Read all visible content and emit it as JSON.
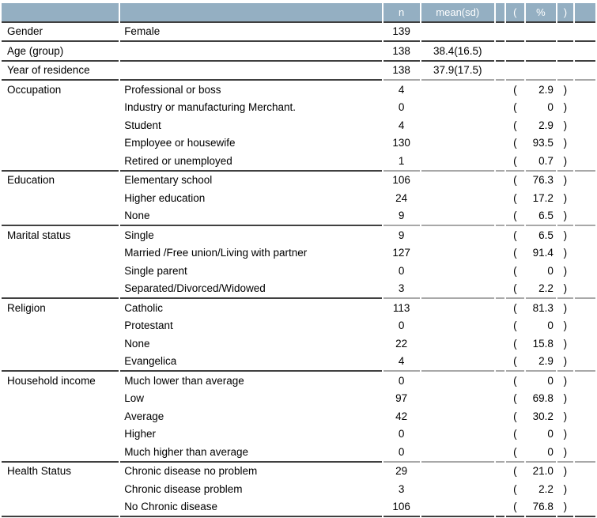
{
  "palette": {
    "header_bg": "#94AFC2",
    "header_text": "#FFFFFF",
    "border_dark": "#404040",
    "border_light": "#A8A8A8",
    "body_text": "#000000"
  },
  "table": {
    "header": {
      "n": "n",
      "mean_sd": "mean(sd)",
      "paren_open": "(",
      "percent": "%",
      "paren_close": ")"
    },
    "sections": [
      {
        "category": "Gender",
        "rows": [
          {
            "label": "Female",
            "n": "139"
          }
        ]
      },
      {
        "category": "Age (group)",
        "rows": [
          {
            "label": "",
            "n": "138",
            "mean_sd": "38.4(16.5)"
          }
        ]
      },
      {
        "category": "Year of residence",
        "rows": [
          {
            "label": "",
            "n": "138",
            "mean_sd": "37.9(17.5)"
          }
        ]
      },
      {
        "category": "Occupation",
        "rows": [
          {
            "label": "Professional or boss",
            "n": "4",
            "po": "(",
            "pct": "2.9",
            "pc": ")"
          },
          {
            "label": "Industry or manufacturing Merchant.",
            "n": "0",
            "po": "(",
            "pct": "0",
            "pc": ")"
          },
          {
            "label": "Student",
            "n": "4",
            "po": "(",
            "pct": "2.9",
            "pc": ")"
          },
          {
            "label": "Employee or housewife",
            "n": "130",
            "po": "(",
            "pct": "93.5",
            "pc": ")"
          },
          {
            "label": "Retired or unemployed",
            "n": "1",
            "po": "(",
            "pct": "0.7",
            "pc": ")"
          }
        ]
      },
      {
        "category": "Education",
        "rows": [
          {
            "label": "Elementary school",
            "n": "106",
            "po": "(",
            "pct": "76.3",
            "pc": ")"
          },
          {
            "label": "Higher education",
            "n": "24",
            "po": "(",
            "pct": "17.2",
            "pc": ")"
          },
          {
            "label": "None",
            "n": "9",
            "po": "(",
            "pct": "6.5",
            "pc": ")"
          }
        ]
      },
      {
        "category": "Marital status",
        "rows": [
          {
            "label": "Single",
            "n": "9",
            "po": "(",
            "pct": "6.5",
            "pc": ")"
          },
          {
            "label": "Married /Free union/Living with partner",
            "n": "127",
            "po": "(",
            "pct": "91.4",
            "pc": ")"
          },
          {
            "label": "Single parent",
            "n": "0",
            "po": "(",
            "pct": "0",
            "pc": ")"
          },
          {
            "label": "Separated/Divorced/Widowed",
            "n": "3",
            "po": "(",
            "pct": "2.2",
            "pc": ")"
          }
        ]
      },
      {
        "category": "Religion",
        "rows": [
          {
            "label": "Catholic",
            "n": "113",
            "po": "(",
            "pct": "81.3",
            "pc": ")"
          },
          {
            "label": "Protestant",
            "n": "0",
            "po": "(",
            "pct": "0",
            "pc": ")"
          },
          {
            "label": "None",
            "n": "22",
            "po": "(",
            "pct": "15.8",
            "pc": ")"
          },
          {
            "label": "Evangelica",
            "n": "4",
            "po": "(",
            "pct": "2.9",
            "pc": ")"
          }
        ]
      },
      {
        "category": "Household income",
        "rows": [
          {
            "label": "Much lower than average",
            "n": "0",
            "po": "(",
            "pct": "0",
            "pc": ")"
          },
          {
            "label": "Low",
            "n": "97",
            "po": "(",
            "pct": "69.8",
            "pc": ")"
          },
          {
            "label": "Average",
            "n": "42",
            "po": "(",
            "pct": "30.2",
            "pc": ")"
          },
          {
            "label": "Higher",
            "n": "0",
            "po": "(",
            "pct": "0",
            "pc": ")"
          },
          {
            "label": "Much higher than average",
            "n": "0",
            "po": "(",
            "pct": "0",
            "pc": ")"
          }
        ]
      },
      {
        "category": "Health Status",
        "rows": [
          {
            "label": "Chronic disease no problem",
            "n": "29",
            "po": "(",
            "pct": "21.0",
            "pc": ")"
          },
          {
            "label": "Chronic disease problem",
            "n": "3",
            "po": "(",
            "pct": "2.2",
            "pc": ")"
          },
          {
            "label": "No Chronic disease",
            "n": "106",
            "po": "(",
            "pct": "76.8",
            "pc": ")"
          }
        ]
      }
    ]
  },
  "chart_data": {
    "type": "table",
    "columns": [
      "category",
      "subcategory",
      "n",
      "mean(sd)",
      "%"
    ],
    "rows": [
      [
        "Gender",
        "Female",
        139,
        null,
        null
      ],
      [
        "Age (group)",
        "",
        138,
        "38.4(16.5)",
        null
      ],
      [
        "Year of residence",
        "",
        138,
        "37.9(17.5)",
        null
      ],
      [
        "Occupation",
        "Professional or boss",
        4,
        null,
        2.9
      ],
      [
        "Occupation",
        "Industry or manufacturing Merchant.",
        0,
        null,
        0
      ],
      [
        "Occupation",
        "Student",
        4,
        null,
        2.9
      ],
      [
        "Occupation",
        "Employee or housewife",
        130,
        null,
        93.5
      ],
      [
        "Occupation",
        "Retired or unemployed",
        1,
        null,
        0.7
      ],
      [
        "Education",
        "Elementary school",
        106,
        null,
        76.3
      ],
      [
        "Education",
        "Higher education",
        24,
        null,
        17.2
      ],
      [
        "Education",
        "None",
        9,
        null,
        6.5
      ],
      [
        "Marital status",
        "Single",
        9,
        null,
        6.5
      ],
      [
        "Marital status",
        "Married /Free union/Living with partner",
        127,
        null,
        91.4
      ],
      [
        "Marital status",
        "Single parent",
        0,
        null,
        0
      ],
      [
        "Marital status",
        "Separated/Divorced/Widowed",
        3,
        null,
        2.2
      ],
      [
        "Religion",
        "Catholic",
        113,
        null,
        81.3
      ],
      [
        "Religion",
        "Protestant",
        0,
        null,
        0
      ],
      [
        "Religion",
        "None",
        22,
        null,
        15.8
      ],
      [
        "Religion",
        "Evangelica",
        4,
        null,
        2.9
      ],
      [
        "Household income",
        "Much lower than average",
        0,
        null,
        0
      ],
      [
        "Household income",
        "Low",
        97,
        null,
        69.8
      ],
      [
        "Household income",
        "Average",
        42,
        null,
        30.2
      ],
      [
        "Household income",
        "Higher",
        0,
        null,
        0
      ],
      [
        "Household income",
        "Much higher than average",
        0,
        null,
        0
      ],
      [
        "Health Status",
        "Chronic disease no problem",
        29,
        null,
        21.0
      ],
      [
        "Health Status",
        "Chronic disease problem",
        3,
        null,
        2.2
      ],
      [
        "Health Status",
        "No Chronic disease",
        106,
        null,
        76.8
      ]
    ]
  }
}
